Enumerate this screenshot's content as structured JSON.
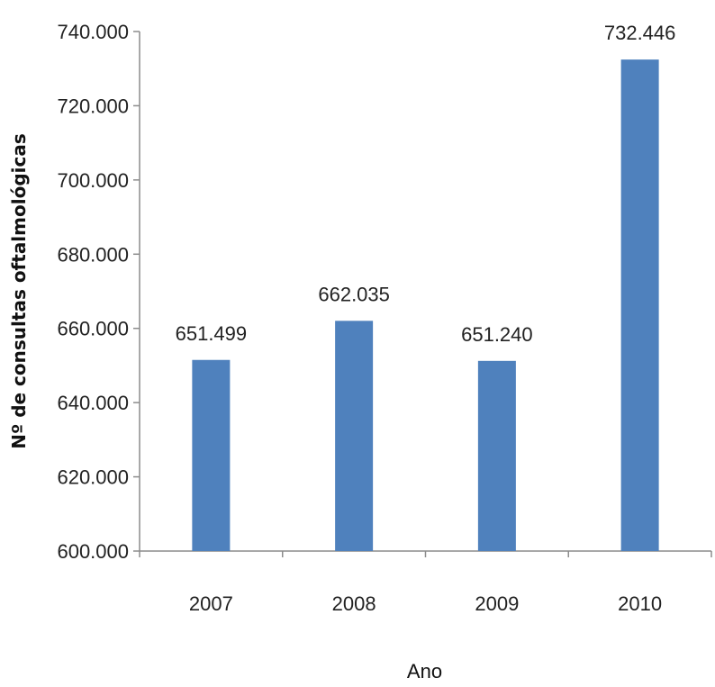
{
  "chart_data": {
    "type": "bar",
    "title": "",
    "xlabel": "Ano",
    "ylabel": "Nº de consultas oftalmológicas",
    "categories": [
      "2007",
      "2008",
      "2009",
      "2010"
    ],
    "values": [
      651499,
      662035,
      651240,
      732446
    ],
    "data_labels": [
      "651.499",
      "662.035",
      "651.240",
      "732.446"
    ],
    "ylim": [
      600000,
      740000
    ],
    "yticks": [
      600000,
      620000,
      640000,
      660000,
      680000,
      700000,
      720000,
      740000
    ],
    "ytick_labels": [
      "600.000",
      "620.000",
      "640.000",
      "660.000",
      "680.000",
      "700.000",
      "720.000",
      "740.000"
    ],
    "bar_color": "#4F81BD",
    "grid": false,
    "legend": "none"
  }
}
